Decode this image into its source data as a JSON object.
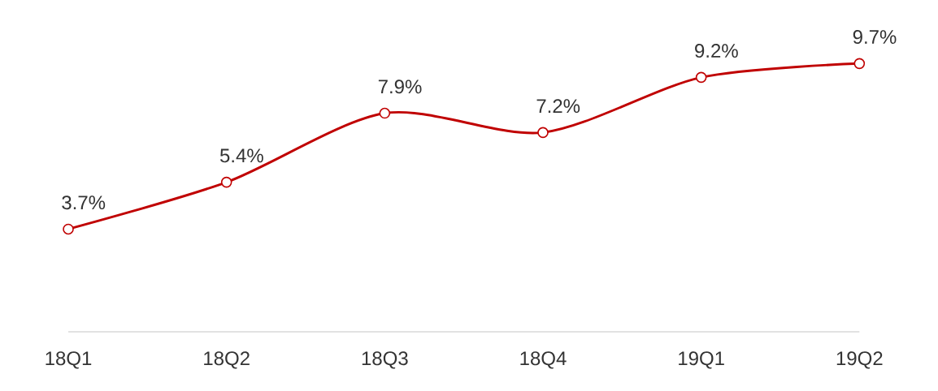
{
  "chart_data": {
    "type": "line",
    "categories": [
      "18Q1",
      "18Q2",
      "18Q3",
      "18Q4",
      "19Q1",
      "19Q2"
    ],
    "values": [
      3.7,
      5.4,
      7.9,
      7.2,
      9.2,
      9.7
    ],
    "value_labels": [
      "3.7%",
      "5.4%",
      "7.9%",
      "7.2%",
      "9.2%",
      "9.7%"
    ],
    "color": "#c00000",
    "marker": "circle",
    "line_style": "solid",
    "tick_labels": "x",
    "grid": false
  }
}
